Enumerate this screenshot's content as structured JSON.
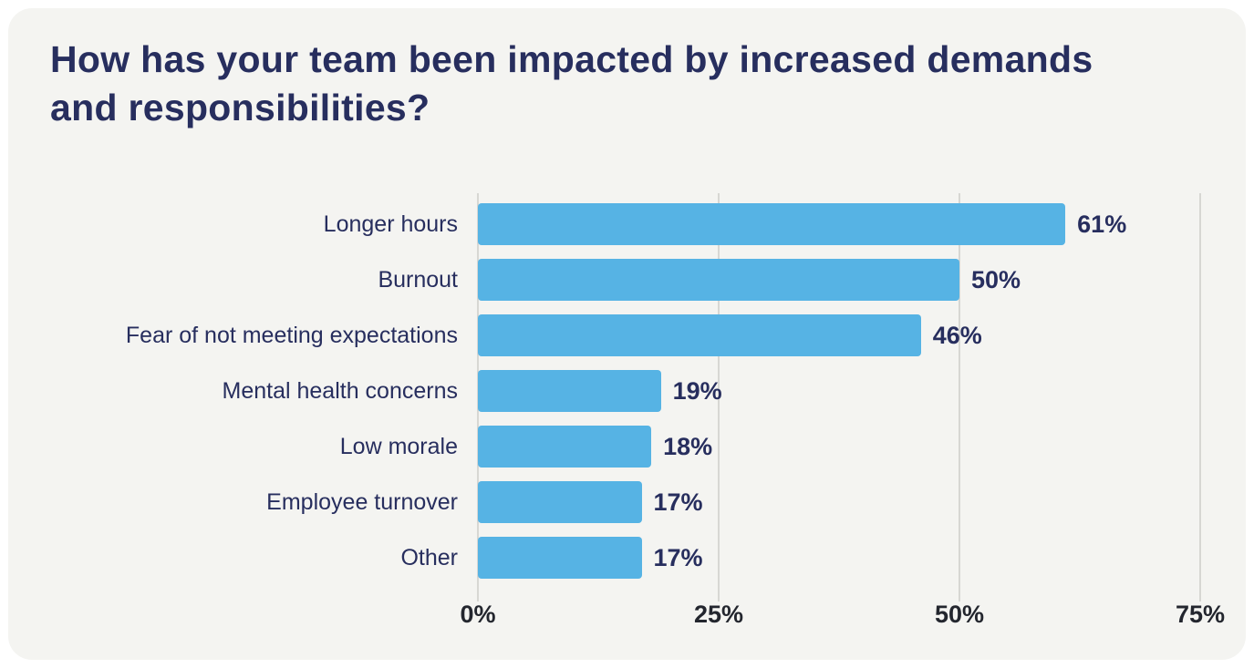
{
  "card": {
    "background": "#f4f4f1"
  },
  "chart_data": {
    "type": "bar",
    "orientation": "horizontal",
    "title": "How has your team been impacted by increased demands and responsibilities?",
    "categories": [
      "Longer hours",
      "Burnout",
      "Fear of not meeting expectations",
      "Mental health concerns",
      "Low morale",
      "Employee turnover",
      "Other"
    ],
    "values": [
      61,
      50,
      46,
      19,
      18,
      17,
      17
    ],
    "value_labels": [
      "61%",
      "50%",
      "46%",
      "19%",
      "18%",
      "17%",
      "17%"
    ],
    "xlabel": "",
    "ylabel": "",
    "xlim": [
      0,
      75
    ],
    "x_ticks": [
      "0%",
      "25%",
      "50%",
      "75%"
    ],
    "x_tick_values": [
      0,
      25,
      50,
      75
    ],
    "grid": "vertical",
    "legend": "none",
    "bar_color": "#56b3e4",
    "title_color": "#272e5e",
    "label_color": "#272e5e",
    "gridline_color": "#d7d7d3"
  }
}
